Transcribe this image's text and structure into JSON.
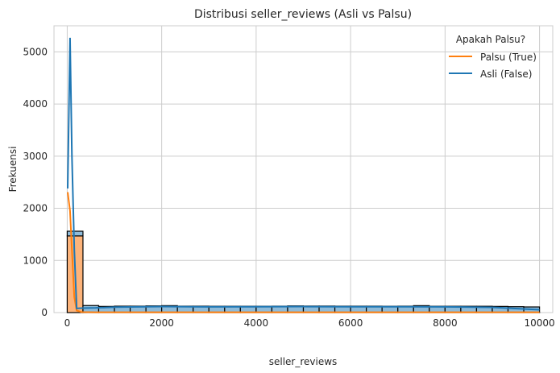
{
  "chart_data": {
    "type": "histogram",
    "title": "Distribusi seller_reviews (Asli vs Palsu)",
    "xlabel": "seller_reviews",
    "ylabel": "Frekuensi",
    "xlim": [
      -280,
      10280
    ],
    "ylim": [
      0,
      5500
    ],
    "xticks": [
      0,
      2000,
      4000,
      6000,
      8000,
      10000
    ],
    "yticks": [
      0,
      1000,
      2000,
      3000,
      4000,
      5000
    ],
    "grid": true,
    "legend": {
      "title": "Apakah Palsu?",
      "placement": "top-right"
    },
    "bin_edges": [
      0,
      333.33,
      666.67,
      1000,
      1333.33,
      1666.67,
      2000,
      2333.33,
      2666.67,
      3000,
      3333.33,
      3666.67,
      4000,
      4333.33,
      4666.67,
      5000,
      5333.33,
      5666.67,
      6000,
      6333.33,
      6666.67,
      7000,
      7333.33,
      7666.67,
      8000,
      8333.33,
      8666.67,
      9000,
      9333.33,
      9666.67,
      10000
    ],
    "series": [
      {
        "name": "Palsu (True)",
        "color": "#ff7f0e",
        "bar_color": "#fdb47b",
        "counts": [
          1470,
          5,
          3,
          3,
          3,
          3,
          3,
          3,
          3,
          3,
          3,
          3,
          3,
          3,
          3,
          3,
          3,
          3,
          3,
          3,
          3,
          3,
          3,
          3,
          3,
          3,
          3,
          3,
          3,
          3
        ],
        "kde": [
          [
            10,
            2310
          ],
          [
            60,
            1950
          ],
          [
            100,
            1200
          ],
          [
            150,
            300
          ],
          [
            200,
            40
          ],
          [
            300,
            10
          ],
          [
            600,
            5
          ],
          [
            10000,
            5
          ]
        ]
      },
      {
        "name": "Asli (False)",
        "color": "#1f77b4",
        "bar_color": "#8fbbd9",
        "counts": [
          90,
          130,
          115,
          120,
          120,
          125,
          130,
          120,
          120,
          118,
          118,
          118,
          118,
          120,
          125,
          122,
          122,
          120,
          120,
          120,
          118,
          120,
          130,
          118,
          118,
          118,
          118,
          115,
          110,
          105
        ],
        "kde": [
          [
            10,
            2380
          ],
          [
            60,
            5270
          ],
          [
            100,
            3000
          ],
          [
            150,
            1200
          ],
          [
            200,
            80
          ],
          [
            300,
            85
          ],
          [
            600,
            90
          ],
          [
            1000,
            105
          ],
          [
            2000,
            115
          ],
          [
            3000,
            110
          ],
          [
            4000,
            112
          ],
          [
            5000,
            115
          ],
          [
            6000,
            113
          ],
          [
            7000,
            112
          ],
          [
            8000,
            110
          ],
          [
            9000,
            100
          ],
          [
            10000,
            55
          ]
        ]
      }
    ]
  }
}
